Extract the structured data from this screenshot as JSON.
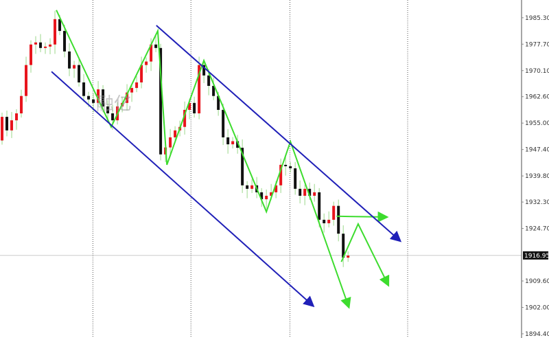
{
  "chart_data": {
    "type": "candlestick",
    "title": "",
    "xlabel": "",
    "ylabel": "",
    "ylim": [
      1893.2,
      1990.4
    ],
    "xlim": [
      -0.43,
      108.1
    ],
    "grid": "vertical dotted separators",
    "y_ticks": [
      "1985.30",
      "1977.70",
      "1970.10",
      "1962.60",
      "1955.00",
      "1947.40",
      "1939.80",
      "1932.30",
      "1924.70",
      "1909.60",
      "1902.00",
      "1894.40"
    ],
    "current_price": "1916.95",
    "separators": [
      18.9,
      39.3,
      59.9,
      84.4
    ],
    "closes": [
      1956.8,
      1952.9,
      1955.8,
      1957.8,
      1962.8,
      1971.7,
      1977.6,
      1978.2,
      1976.6,
      1977.0,
      1977.6,
      1984.9,
      1981.5,
      1975.6,
      1970.7,
      1971.7,
      1966.7,
      1962.8,
      1961.8,
      1960.8,
      1964.7,
      1959.8,
      1957.8,
      1955.8,
      1959.8,
      1960.8,
      1963.8,
      1965.1,
      1966.7,
      1971.7,
      1972.7,
      1977.6,
      1976.6,
      1946.0,
      1948.0,
      1950.9,
      1952.9,
      1953.9,
      1958.8,
      1960.8,
      1957.8,
      1971.7,
      1968.7,
      1965.7,
      1962.8,
      1958.8,
      1950.9,
      1948.9,
      1949.8,
      1947.9,
      1937.1,
      1936.1,
      1937.1,
      1935.1,
      1933.1,
      1934.1,
      1935.1,
      1937.1,
      1943.0,
      1942.6,
      1942.0,
      1936.1,
      1934.1,
      1936.1,
      1934.1,
      1935.1,
      1927.2,
      1926.2,
      1927.2,
      1931.2,
      1923.2,
      1916.3,
      1916.9
    ],
    "first_open": 1950.0,
    "up_color": "#e8141c",
    "down_color": "#111111",
    "wick_color": "#9bd88a",
    "drawings": [
      {
        "color": "#3ddc2e",
        "arrow": false,
        "points": [
          [
            11.3,
            1987.5
          ],
          [
            22.7,
            1953.9
          ],
          [
            32.4,
            1981.5
          ],
          [
            34.3,
            1943.0
          ],
          [
            42.0,
            1973.0
          ],
          [
            55.0,
            1929.5
          ],
          [
            60.0,
            1949.7
          ],
          [
            72.1,
            1902.3
          ]
        ]
      },
      {
        "color": "#3ddc2e",
        "arrow": true,
        "points": [
          [
            70.6,
            1915.1
          ],
          [
            74.1,
            1926.0
          ],
          [
            80.3,
            1908.6
          ]
        ]
      },
      {
        "color": "#3ddc2e",
        "arrow": true,
        "points": [
          [
            69.6,
            1928.2
          ],
          [
            79.9,
            1928.0
          ]
        ]
      },
      {
        "color": "#2020b8",
        "arrow": true,
        "points": [
          [
            32.1,
            1983.1
          ],
          [
            82.7,
            1921.3
          ]
        ]
      },
      {
        "color": "#2020b8",
        "arrow": true,
        "points": [
          [
            10.3,
            1969.8
          ],
          [
            64.6,
            1902.6
          ]
        ]
      }
    ]
  },
  "watermark": "融亿"
}
